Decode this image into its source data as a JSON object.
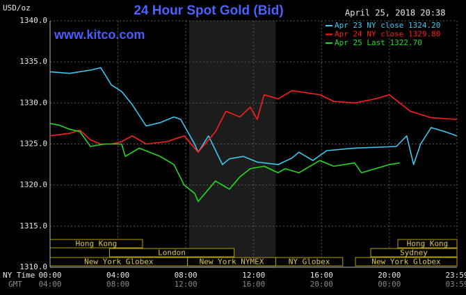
{
  "chart_data": {
    "type": "line",
    "title": "24 Hour Spot Gold (Bid)",
    "timestamp": "April 25, 2018 20:38",
    "watermark": "www.kitco.com",
    "y_label": "USD/oz",
    "x_label": "NY Time",
    "x2_label": "GMT",
    "xlim": [
      0,
      23.983
    ],
    "ylim": [
      1310,
      1340
    ],
    "xticks": [
      {
        "value": 0,
        "label": "00:00"
      },
      {
        "value": 4,
        "label": "04:00"
      },
      {
        "value": 8,
        "label": "08:00"
      },
      {
        "value": 12,
        "label": "12:00"
      },
      {
        "value": 16,
        "label": "16:00"
      },
      {
        "value": 20,
        "label": "20:00"
      },
      {
        "value": 23.983,
        "label": "23:59"
      }
    ],
    "x2tick_labels": [
      "04:00",
      "08:00",
      "12:00",
      "16:00",
      "20:00",
      "00:00",
      "03:59"
    ],
    "yticks": [
      {
        "value": 1310,
        "label": "1310.0"
      },
      {
        "value": 1315,
        "label": "1315.0"
      },
      {
        "value": 1320,
        "label": "1320.0"
      },
      {
        "value": 1325,
        "label": "1325.0"
      },
      {
        "value": 1330,
        "label": "1330.0"
      },
      {
        "value": 1335,
        "label": "1335.0"
      },
      {
        "value": 1340,
        "label": "1340.0"
      }
    ],
    "grid": true,
    "shaded_span": [
      8.2,
      13.3
    ],
    "series": [
      {
        "name": "Apr 23 NY close 1324.20",
        "color": "#3cc8f0",
        "x": [
          0,
          1.15,
          2.38,
          2.99,
          3.61,
          4.22,
          4.84,
          5.66,
          6.48,
          7.3,
          7.7,
          8.52,
          8.73,
          9.34,
          10.16,
          10.57,
          11.39,
          12.21,
          13.44,
          14.26,
          14.67,
          15.49,
          16.31,
          17.95,
          20.41,
          21.02,
          21.43,
          21.84,
          22.46,
          23.28,
          23.98
        ],
        "values": [
          1333.8,
          1333.6,
          1334.0,
          1334.3,
          1332.2,
          1331.4,
          1329.8,
          1327.2,
          1327.6,
          1328.3,
          1328.0,
          1325.0,
          1324.0,
          1326.0,
          1322.5,
          1323.2,
          1323.5,
          1322.8,
          1322.5,
          1323.3,
          1324.0,
          1323.0,
          1324.2,
          1324.5,
          1324.7,
          1326.0,
          1322.5,
          1325.0,
          1327.0,
          1326.5,
          1326.0
        ]
      },
      {
        "name": "Apr 24 NY close 1329.80",
        "color": "#ff1e1e",
        "x": [
          0,
          1.15,
          1.76,
          2.38,
          2.99,
          3.61,
          4.22,
          4.84,
          5.66,
          6.89,
          7.91,
          8.73,
          9.75,
          10.37,
          11.19,
          11.8,
          12.21,
          12.62,
          13.44,
          14.26,
          15.9,
          16.72,
          17.95,
          19.18,
          20,
          20.61,
          21.23,
          22.46,
          23.98
        ],
        "values": [
          1326.0,
          1326.3,
          1326.7,
          1325.5,
          1325.0,
          1325.0,
          1325.3,
          1326.0,
          1325.0,
          1325.3,
          1326.0,
          1324.0,
          1326.5,
          1329.0,
          1328.3,
          1329.5,
          1328.0,
          1331.0,
          1330.5,
          1331.5,
          1331.0,
          1330.2,
          1330.0,
          1330.5,
          1331.0,
          1330.0,
          1329.0,
          1328.2,
          1328.0
        ]
      },
      {
        "name": "Apr 25 Last 1322.70",
        "color": "#20dc20",
        "x": [
          0,
          0.53,
          1.15,
          1.76,
          2.38,
          3.2,
          4.22,
          4.43,
          5.25,
          6.48,
          7.3,
          7.91,
          8.52,
          8.73,
          9.75,
          10.57,
          11.19,
          11.8,
          12.62,
          13.44,
          13.85,
          14.67,
          15.49,
          15.9,
          16.72,
          17.95,
          18.36,
          19.18,
          20,
          20.61
        ],
        "values": [
          1327.5,
          1327.3,
          1326.8,
          1326.5,
          1324.7,
          1325.0,
          1325.0,
          1323.5,
          1324.5,
          1323.5,
          1322.5,
          1320.0,
          1319.0,
          1318.0,
          1320.5,
          1319.5,
          1321.0,
          1322.0,
          1322.3,
          1321.5,
          1322.0,
          1321.5,
          1322.5,
          1323.0,
          1322.3,
          1322.7,
          1321.5,
          1322.0,
          1322.5,
          1322.7
        ]
      }
    ],
    "session_rows": [
      [
        {
          "label": "Hong Kong",
          "start": 0,
          "end": 5.45
        },
        {
          "label": "Hong Kong",
          "start": 20.5,
          "end": 23.983
        }
      ],
      [
        {
          "label": "London",
          "start": 3.5,
          "end": 10.85
        },
        {
          "label": "Sydney",
          "start": 18.9,
          "end": 23.983
        }
      ],
      [
        {
          "label": "New York Globex",
          "start": 0,
          "end": 8.1
        },
        {
          "label": "New York NYMEX",
          "start": 8.1,
          "end": 13.3
        },
        {
          "label": "NY Globex",
          "start": 13.3,
          "end": 17.25
        },
        {
          "label": "New York Globex",
          "start": 18,
          "end": 23.983
        }
      ]
    ]
  }
}
